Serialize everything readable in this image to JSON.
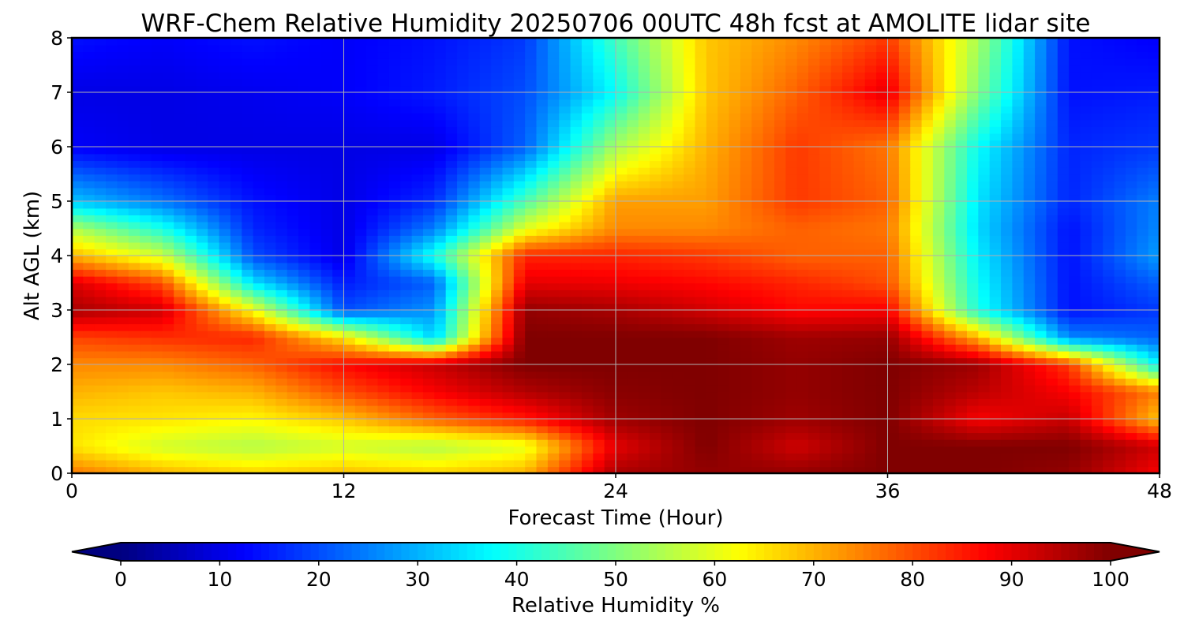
{
  "chart_data": {
    "type": "heatmap",
    "title": "WRF-Chem Relative Humidity 20250706 00UTC 48h fcst at AMOLITE lidar site",
    "xlabel": "Forecast Time (Hour)",
    "ylabel": "Alt AGL (km)",
    "xlim": [
      0,
      48
    ],
    "ylim": [
      0,
      8
    ],
    "x_ticks": [
      "0",
      "12",
      "24",
      "36",
      "48"
    ],
    "y_ticks": [
      "0",
      "1",
      "2",
      "3",
      "4",
      "5",
      "6",
      "7",
      "8"
    ],
    "grid": true,
    "colormap": "jet",
    "colorbar": {
      "label": "Relative Humidity %",
      "range": [
        0,
        100
      ],
      "ticks": [
        "0",
        "10",
        "20",
        "30",
        "40",
        "50",
        "60",
        "70",
        "80",
        "90",
        "100"
      ],
      "extend": "both",
      "placement": "bottom"
    },
    "x": [
      0,
      4,
      8,
      12,
      16,
      20,
      24,
      28,
      32,
      36,
      40,
      44,
      48
    ],
    "y": [
      0,
      0.5,
      1,
      1.5,
      2,
      2.5,
      3,
      3.5,
      4,
      4.5,
      5,
      6,
      7,
      8
    ],
    "z": [
      [
        76,
        70,
        67,
        69,
        67,
        70,
        96,
        98,
        98,
        100,
        100,
        98,
        88
      ],
      [
        65,
        58,
        55,
        58,
        55,
        60,
        90,
        100,
        92,
        100,
        100,
        100,
        92
      ],
      [
        66,
        65,
        63,
        68,
        78,
        85,
        97,
        100,
        97,
        100,
        88,
        93,
        68
      ],
      [
        70,
        68,
        70,
        80,
        88,
        95,
        99,
        100,
        98,
        100,
        94,
        88,
        75
      ],
      [
        74,
        74,
        78,
        87,
        93,
        100,
        100,
        100,
        98,
        100,
        97,
        82,
        36
      ],
      [
        81,
        83,
        84,
        65,
        33,
        100,
        100,
        100,
        97,
        98,
        70,
        26,
        22
      ],
      [
        96,
        92,
        62,
        20,
        27,
        98,
        96,
        92,
        87,
        88,
        40,
        14,
        18
      ],
      [
        91,
        80,
        35,
        15,
        22,
        90,
        89,
        87,
        84,
        80,
        38,
        14,
        22
      ],
      [
        70,
        58,
        20,
        10,
        40,
        84,
        84,
        82,
        78,
        78,
        36,
        14,
        28
      ],
      [
        55,
        40,
        16,
        10,
        25,
        60,
        74,
        74,
        78,
        76,
        34,
        14,
        26
      ],
      [
        32,
        24,
        14,
        10,
        17,
        45,
        72,
        72,
        82,
        78,
        35,
        16,
        25
      ],
      [
        12,
        10,
        10,
        10,
        10,
        22,
        54,
        70,
        82,
        76,
        38,
        16,
        18
      ],
      [
        10,
        10,
        11,
        12,
        15,
        20,
        38,
        68,
        78,
        90,
        50,
        14,
        15
      ],
      [
        14,
        12,
        14,
        12,
        14,
        18,
        44,
        68,
        74,
        82,
        54,
        14,
        12
      ]
    ]
  }
}
